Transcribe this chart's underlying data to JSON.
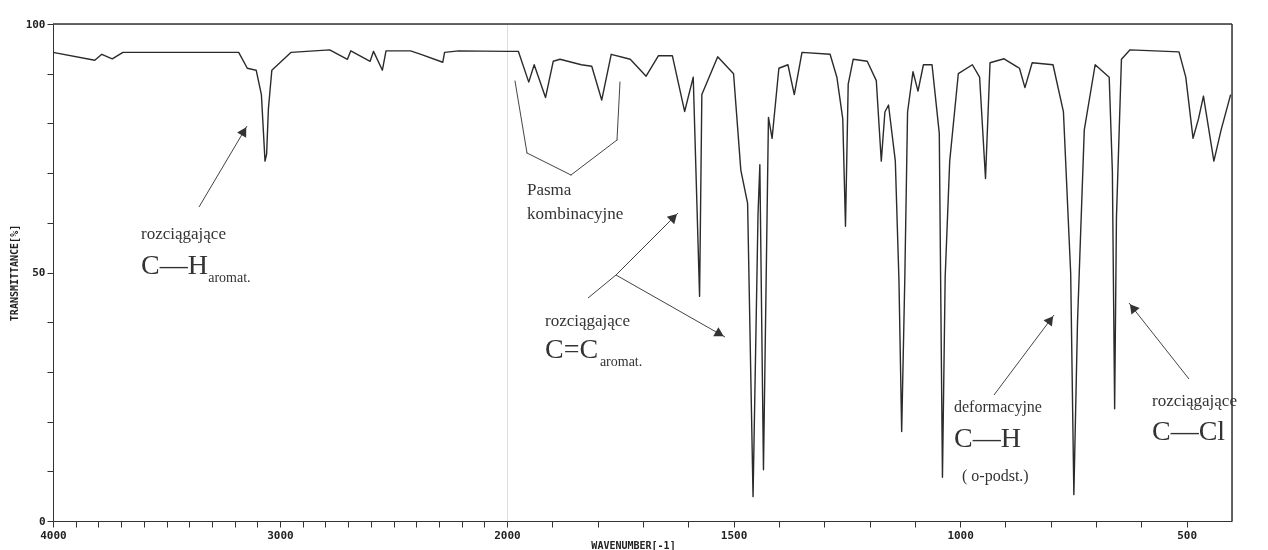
{
  "chart_data": [
    {
      "type": "line",
      "ylabel": "TRANSMITTANCE[%]",
      "x": [
        4000,
        3816,
        3785,
        3739,
        3692,
        3182,
        3144,
        3105,
        3082,
        3066,
        3059,
        3051,
        3036,
        2951,
        2781,
        2703,
        2688,
        2603,
        2588,
        2549,
        2533,
        2425,
        2379,
        2283,
        2275,
        2213,
        2000
      ],
      "values": [
        94.3,
        92.7,
        93.9,
        93.0,
        94.3,
        94.3,
        91.1,
        90.7,
        85.8,
        72.4,
        73.8,
        83.0,
        90.7,
        94.3,
        94.8,
        92.9,
        94.6,
        92.5,
        94.5,
        90.7,
        94.6,
        94.6,
        93.9,
        92.3,
        94.3,
        94.6,
        94.5
      ],
      "color": "#2b2b2b",
      "xlim": [
        4000,
        2000
      ],
      "xticks": [
        4000,
        {
          "value": 3900,
          "label": null
        },
        {
          "value": 3800,
          "label": null
        },
        {
          "value": 3700,
          "label": null
        },
        {
          "value": 3600,
          "label": null
        },
        {
          "value": 3500,
          "label": null
        },
        {
          "value": 3400,
          "label": null
        },
        {
          "value": 3300,
          "label": null
        },
        {
          "value": 3200,
          "label": null
        },
        {
          "value": 3100,
          "label": null
        },
        3000,
        {
          "value": 2900,
          "label": null
        },
        {
          "value": 2800,
          "label": null
        },
        {
          "value": 2700,
          "label": null
        },
        {
          "value": 2600,
          "label": null
        },
        {
          "value": 2500,
          "label": null
        },
        {
          "value": 2400,
          "label": null
        },
        {
          "value": 2300,
          "label": null
        },
        {
          "value": 2200,
          "label": null
        },
        {
          "value": 2100,
          "label": null
        }
      ],
      "ylim": [
        0,
        100
      ],
      "yticks": [
        0,
        {
          "value": 10,
          "label": null
        },
        {
          "value": 20,
          "label": null
        },
        {
          "value": 30,
          "label": null
        },
        {
          "value": 40,
          "label": null
        },
        50,
        {
          "value": 60,
          "label": null
        },
        {
          "value": 70,
          "label": null
        },
        {
          "value": 80,
          "label": null
        },
        {
          "value": 90,
          "label": null
        },
        100
      ],
      "grid": false,
      "annotations": [
        "rozciągające\nC—H$_{aromat.}$"
      ]
    },
    {
      "type": "line",
      "xlabel": "WAVENUMBER[-1]",
      "x": [
        2000,
        1975,
        1952,
        1940,
        1915,
        1898,
        1883,
        1836,
        1813,
        1791,
        1770,
        1728,
        1693,
        1666,
        1635,
        1608,
        1589,
        1575,
        1570,
        1535,
        1500,
        1484,
        1469,
        1457,
        1446,
        1442,
        1434,
        1423,
        1415,
        1400,
        1380,
        1366,
        1349,
        1287,
        1272,
        1259,
        1253,
        1247,
        1236,
        1205,
        1185,
        1174,
        1166,
        1158,
        1143,
        1135,
        1129,
        1122,
        1116,
        1104,
        1093,
        1081,
        1062,
        1046,
        1039,
        1033,
        1023,
        1004,
        973,
        957,
        944,
        934,
        903,
        869,
        857,
        841,
        795,
        772,
        756,
        749,
        741,
        726,
        702,
        671,
        664,
        659,
        655,
        644,
        625,
        517,
        502,
        486,
        474,
        463,
        440,
        424,
        403
      ],
      "values": [
        94.5,
        94.5,
        88.3,
        91.8,
        85.2,
        92.5,
        92.9,
        91.8,
        91.5,
        84.7,
        93.9,
        92.9,
        89.5,
        93.6,
        93.6,
        82.4,
        89.3,
        45.2,
        85.8,
        93.4,
        90.0,
        70.6,
        63.9,
        4.9,
        61.8,
        71.7,
        10.3,
        81.2,
        77.0,
        91.1,
        91.8,
        85.8,
        94.3,
        93.9,
        89.3,
        80.9,
        59.3,
        87.9,
        92.9,
        92.5,
        88.6,
        72.4,
        82.3,
        83.7,
        72.4,
        48.4,
        18.0,
        49.2,
        82.3,
        90.4,
        86.5,
        91.8,
        91.8,
        78.0,
        8.8,
        49.1,
        72.4,
        90.0,
        91.8,
        89.3,
        68.9,
        92.2,
        93.0,
        91.1,
        87.2,
        92.2,
        91.8,
        82.3,
        49.8,
        5.3,
        39.9,
        78.7,
        91.8,
        89.3,
        70.3,
        22.6,
        61.1,
        92.9,
        94.8,
        94.4,
        89.3,
        77.0,
        80.9,
        85.5,
        72.4,
        78.7,
        85.8
      ],
      "color": "#2b2b2b",
      "xlim": [
        2000,
        400
      ],
      "xticks": [
        2000,
        {
          "value": 1900,
          "label": null
        },
        {
          "value": 1800,
          "label": null
        },
        {
          "value": 1700,
          "label": null
        },
        {
          "value": 1600,
          "label": null
        },
        1500,
        {
          "value": 1400,
          "label": null
        },
        {
          "value": 1300,
          "label": null
        },
        {
          "value": 1200,
          "label": null
        },
        {
          "value": 1100,
          "label": null
        },
        1000,
        {
          "value": 900,
          "label": null
        },
        {
          "value": 800,
          "label": null
        },
        {
          "value": 700,
          "label": null
        },
        {
          "value": 600,
          "label": null
        },
        500
      ],
      "ylim": [
        0,
        100
      ],
      "tick_labels": "x",
      "grid": false,
      "annotations": [
        "Pasma\nkombinacyjne",
        "rozciągające\nC=C$_{aromat.}$",
        "deformacyjne\nC—H\n( o-podst.)",
        "rozciągające\nC—Cl"
      ]
    }
  ]
}
